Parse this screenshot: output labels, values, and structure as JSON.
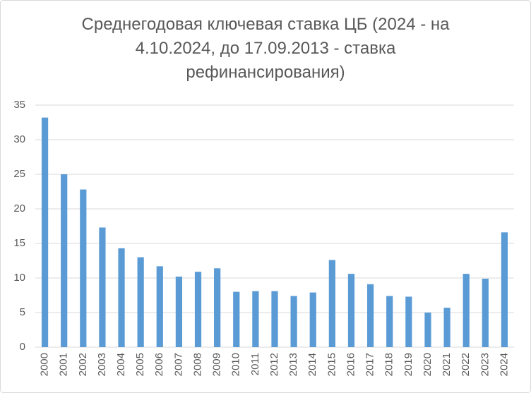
{
  "chart_data": {
    "type": "bar",
    "title": "Среднегодовая ключевая ставка ЦБ (2024 - на 4.10.2024, до 17.09.2013 - ставка рефинансирования)",
    "categories": [
      "2000",
      "2001",
      "2002",
      "2003",
      "2004",
      "2005",
      "2006",
      "2007",
      "2008",
      "2009",
      "2010",
      "2011",
      "2012",
      "2013",
      "2014",
      "2015",
      "2016",
      "2017",
      "2018",
      "2019",
      "2020",
      "2021",
      "2022",
      "2023",
      "2024"
    ],
    "values": [
      33.2,
      25.0,
      22.8,
      17.3,
      14.3,
      13.0,
      11.7,
      10.2,
      10.9,
      11.4,
      8.0,
      8.1,
      8.1,
      7.4,
      7.9,
      12.6,
      10.6,
      9.1,
      7.4,
      7.3,
      5.0,
      5.7,
      10.6,
      9.9,
      16.6
    ],
    "color": "#5b9bd5",
    "ylim": [
      0,
      35
    ],
    "yticks": [
      0,
      5,
      10,
      15,
      20,
      25,
      30,
      35
    ],
    "grid": true
  }
}
